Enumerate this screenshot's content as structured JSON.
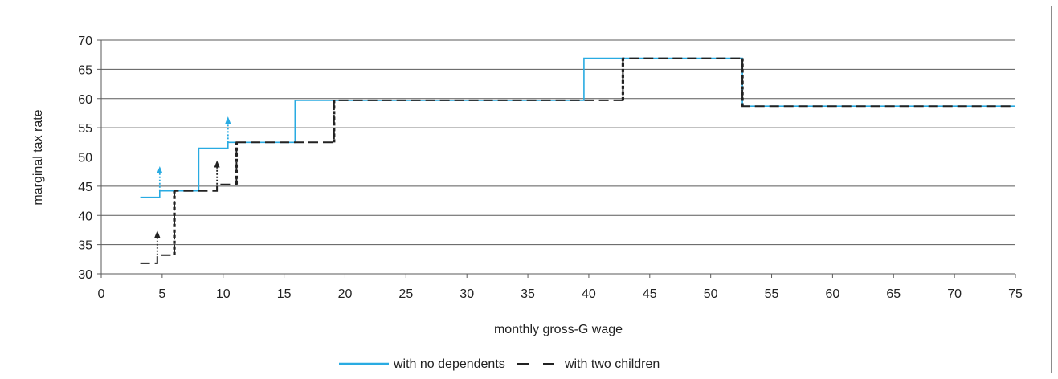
{
  "chart_data": {
    "type": "line",
    "xlabel": "monthly gross-G wage",
    "ylabel": "marginal tax rate",
    "xlim": [
      0,
      75
    ],
    "ylim": [
      30,
      70
    ],
    "x_ticks": [
      0,
      5,
      10,
      15,
      20,
      25,
      30,
      35,
      40,
      45,
      50,
      55,
      60,
      65,
      70,
      75
    ],
    "y_ticks": [
      30,
      35,
      40,
      45,
      50,
      55,
      60,
      65,
      70
    ],
    "x_tick_labels": [
      "0",
      "5",
      "10",
      "15",
      "20",
      "25",
      "30",
      "35",
      "40",
      "45",
      "50",
      "55",
      "60",
      "65",
      "70",
      "75"
    ],
    "y_tick_labels": [
      "30",
      "35",
      "40",
      "45",
      "50",
      "55",
      "60",
      "65",
      "70"
    ],
    "grid": "horizontal",
    "legend_position": "bottom-center",
    "series": [
      {
        "name": "with no dependents",
        "color": "#29abe2",
        "style": "solid",
        "points": [
          [
            3.2,
            43.1
          ],
          [
            4.8,
            43.1
          ],
          [
            4.8,
            44.2
          ],
          [
            8.0,
            44.2
          ],
          [
            8.0,
            51.5
          ],
          [
            10.4,
            51.5
          ],
          [
            10.4,
            52.5
          ],
          [
            15.9,
            52.5
          ],
          [
            15.9,
            59.7
          ],
          [
            39.6,
            59.7
          ],
          [
            39.6,
            66.9
          ],
          [
            52.6,
            66.9
          ],
          [
            52.6,
            58.7
          ],
          [
            75.0,
            58.7
          ]
        ],
        "arrows": [
          [
            4.8,
            44.2,
            47.8
          ],
          [
            10.4,
            52.5,
            56.3
          ]
        ]
      },
      {
        "name": "with two children",
        "color": "#222222",
        "style": "dashed",
        "points": [
          [
            3.2,
            31.8
          ],
          [
            4.6,
            31.8
          ],
          [
            4.6,
            33.2
          ],
          [
            6.0,
            33.2
          ],
          [
            6.0,
            44.2
          ],
          [
            9.5,
            44.2
          ],
          [
            9.5,
            45.3
          ],
          [
            11.1,
            45.3
          ],
          [
            11.1,
            52.5
          ],
          [
            19.1,
            52.5
          ],
          [
            19.1,
            59.7
          ],
          [
            42.8,
            59.7
          ],
          [
            42.8,
            66.9
          ],
          [
            52.6,
            66.9
          ],
          [
            52.6,
            58.7
          ],
          [
            75.0,
            58.7
          ]
        ],
        "arrows": [
          [
            4.6,
            33.2,
            36.8
          ],
          [
            9.5,
            45.3,
            48.8
          ]
        ]
      }
    ],
    "legend": [
      {
        "label": "with no dependents",
        "color": "#29abe2",
        "style": "solid"
      },
      {
        "label": "with two children",
        "color": "#222222",
        "style": "dashed"
      }
    ]
  }
}
